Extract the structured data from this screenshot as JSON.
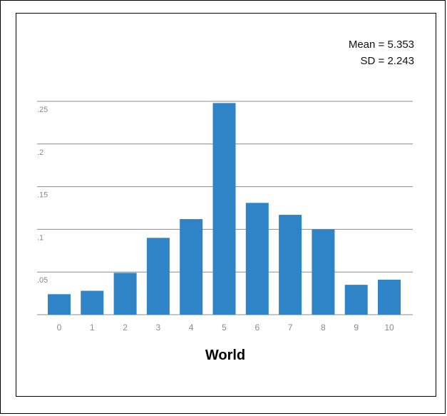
{
  "chart_data": {
    "type": "bar",
    "title": "",
    "xlabel": "World",
    "ylabel": "",
    "categories": [
      "0",
      "1",
      "2",
      "3",
      "4",
      "5",
      "6",
      "7",
      "8",
      "9",
      "10"
    ],
    "values": [
      0.024,
      0.028,
      0.049,
      0.09,
      0.112,
      0.248,
      0.131,
      0.117,
      0.1,
      0.035,
      0.041
    ],
    "ylim": [
      0,
      0.25
    ],
    "yticks": [
      0.05,
      0.1,
      0.15,
      0.2,
      0.25
    ],
    "ytick_labels": [
      ".05",
      ".1",
      ".15",
      ".2",
      ".25"
    ],
    "grid": true,
    "annotations": [
      "Mean = 5.353",
      "SD = 2.243"
    ],
    "bar_color": "#2f84c8",
    "grid_color": "#8c8c8c"
  }
}
